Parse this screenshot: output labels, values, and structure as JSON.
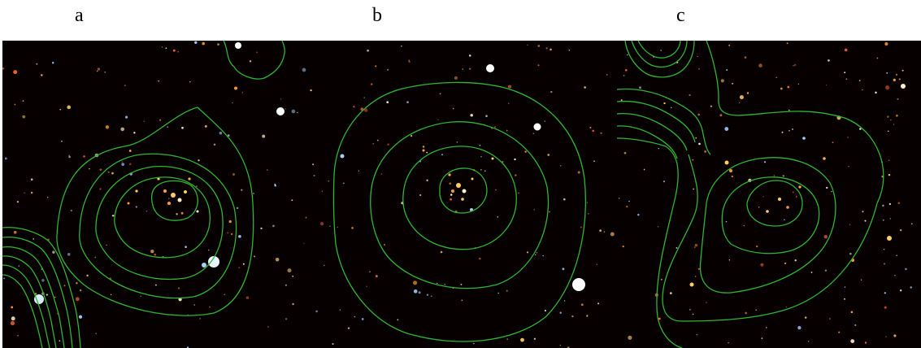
{
  "figure": {
    "panels": [
      {
        "label": "a",
        "image": "astronomical-field-a",
        "contour_color": "#2fb52f"
      },
      {
        "label": "b",
        "image": "astronomical-field-b",
        "contour_color": "#2fb52f"
      },
      {
        "label": "c",
        "image": "astronomical-field-c",
        "contour_color": "#2fb52f"
      }
    ],
    "background": "#070000",
    "galaxy_colors": [
      "#ffcc66",
      "#ff9933",
      "#ffeecc",
      "#aaccff",
      "#ff6633"
    ]
  }
}
